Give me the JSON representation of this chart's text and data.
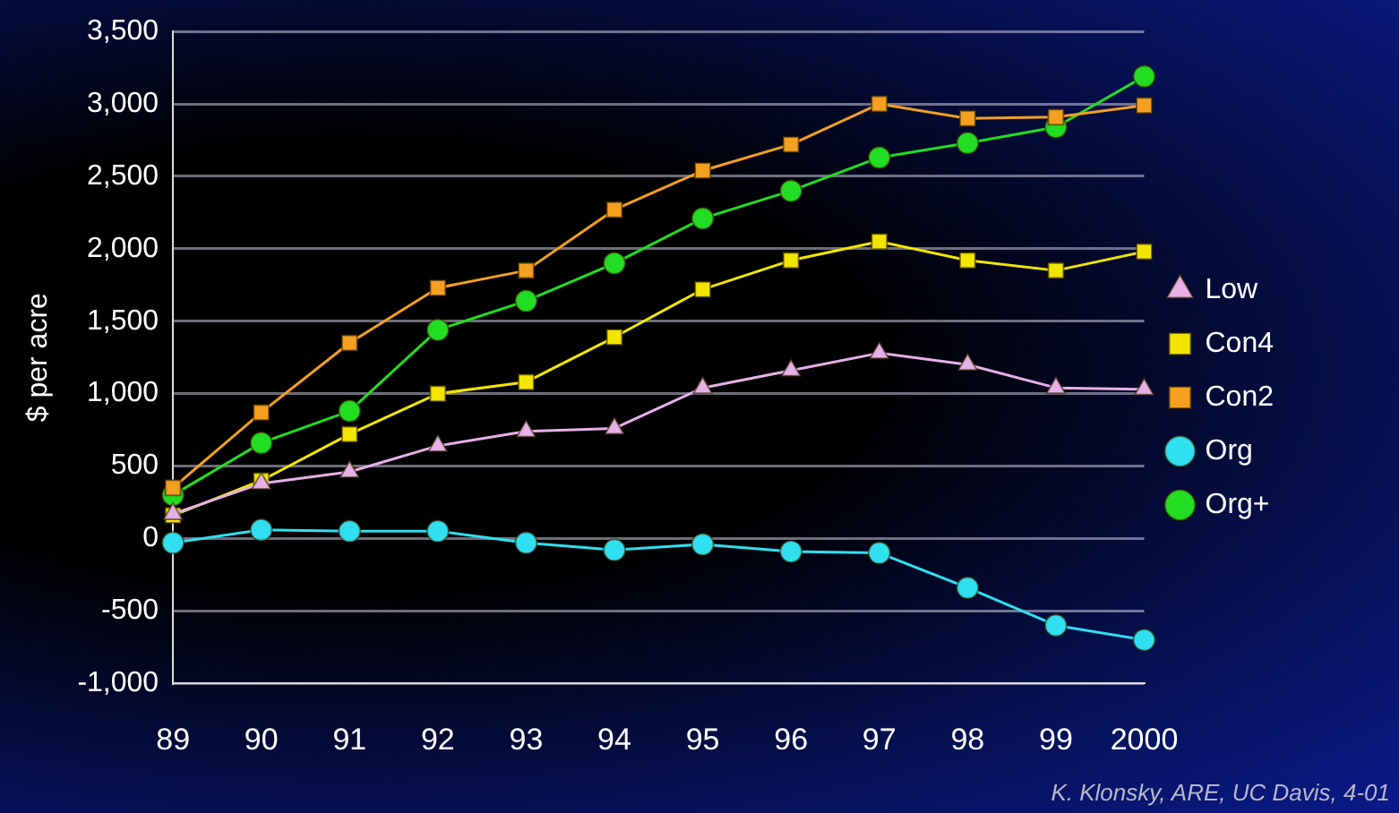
{
  "chart_data": {
    "type": "line",
    "ylabel": "$ per acre",
    "categories": [
      "89",
      "90",
      "91",
      "92",
      "93",
      "94",
      "95",
      "96",
      "97",
      "98",
      "99",
      "2000"
    ],
    "series": [
      {
        "name": "Con4",
        "color": "#f2e600",
        "marker": "square",
        "values": [
          160,
          400,
          720,
          1000,
          1080,
          1390,
          1720,
          1920,
          2050,
          1920,
          1850,
          1980
        ]
      },
      {
        "name": "Con2",
        "color": "#f5a020",
        "marker": "square",
        "values": [
          350,
          870,
          1350,
          1730,
          1850,
          2270,
          2540,
          2720,
          3000,
          2900,
          2910,
          2990
        ]
      },
      {
        "name": "Low",
        "color": "#e6b0e8",
        "marker": "triangle",
        "values": [
          170,
          380,
          460,
          640,
          740,
          760,
          1040,
          1160,
          1280,
          1200,
          1040,
          1030
        ]
      },
      {
        "name": "Org",
        "color": "#30dff0",
        "marker": "circle",
        "values": [
          -30,
          60,
          50,
          50,
          -30,
          -80,
          -40,
          -90,
          -100,
          -340,
          -600,
          -700
        ]
      },
      {
        "name": "Org+",
        "color": "#22dd22",
        "marker": "circle",
        "values": [
          300,
          660,
          880,
          1440,
          1640,
          1900,
          2210,
          2400,
          2630,
          2730,
          2840,
          3190
        ]
      }
    ],
    "ylim": [
      -1000,
      3500
    ],
    "yticks": [
      {
        "value": -1000,
        "label": "-1,000"
      },
      {
        "value": -500,
        "label": "-500"
      },
      0,
      500,
      {
        "value": 1000,
        "label": "1,000"
      },
      {
        "value": 1500,
        "label": "1,500"
      },
      {
        "value": 2000,
        "label": "2,000"
      },
      {
        "value": 2500,
        "label": "2,500"
      },
      {
        "value": 3000,
        "label": "3,000"
      },
      {
        "value": 3500,
        "label": "3,500"
      }
    ],
    "grid": "y",
    "legend": "right",
    "line_style": "solid",
    "annotations": [
      "K. Klonsky, ARE, UC Davis, 4-01"
    ]
  }
}
